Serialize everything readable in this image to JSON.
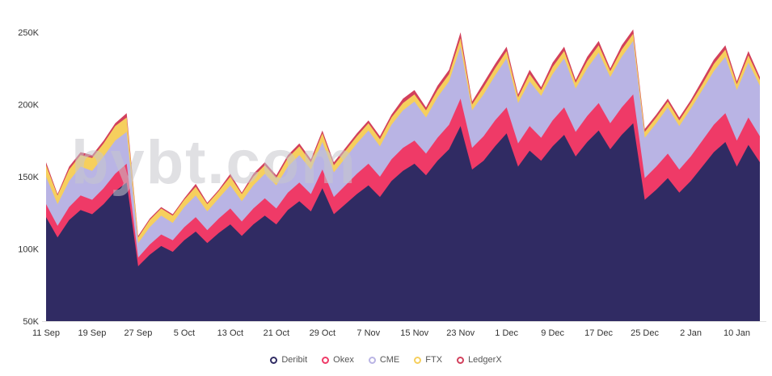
{
  "watermark": "bybt.com",
  "chart_data": {
    "type": "area",
    "stacked": true,
    "title": "",
    "xlabel": "",
    "ylabel": "",
    "unit": "K",
    "grid": false,
    "legend_position": "bottom",
    "y_ticks": [
      50,
      100,
      150,
      200,
      250
    ],
    "y_tick_labels": [
      "50K",
      "100K",
      "150K",
      "200K",
      "250K"
    ],
    "ylim": [
      50,
      260
    ],
    "x_tick_labels": [
      "11 Sep",
      "19 Sep",
      "27 Sep",
      "5 Oct",
      "13 Oct",
      "21 Oct",
      "29 Oct",
      "7 Nov",
      "15 Nov",
      "23 Nov",
      "1 Dec",
      "9 Dec",
      "17 Dec",
      "25 Dec",
      "2 Jan",
      "10 Jan"
    ],
    "x_tick_indices": [
      0,
      4,
      8,
      12,
      16,
      20,
      24,
      28,
      32,
      36,
      40,
      44,
      48,
      52,
      56,
      60
    ],
    "series": [
      {
        "name": "Deribit",
        "color": "#302b63",
        "values": [
          122,
          108,
          120,
          127,
          124,
          131,
          140,
          146,
          88,
          96,
          102,
          98,
          106,
          112,
          104,
          111,
          117,
          109,
          117,
          123,
          117,
          127,
          133,
          126,
          142,
          124,
          131,
          138,
          144,
          136,
          147,
          154,
          159,
          151,
          161,
          169,
          185,
          155,
          161,
          171,
          180,
          157,
          168,
          161,
          171,
          179,
          164,
          174,
          182,
          169,
          179,
          187,
          134,
          141,
          149,
          139,
          147,
          157,
          167,
          174,
          157,
          172,
          160
        ]
      },
      {
        "name": "Okex",
        "color": "#ef3a67",
        "values": [
          9,
          8,
          9,
          10,
          10,
          11,
          12,
          13,
          6,
          7,
          8,
          8,
          9,
          10,
          9,
          10,
          11,
          10,
          11,
          12,
          11,
          12,
          13,
          12,
          13,
          12,
          13,
          14,
          15,
          14,
          15,
          16,
          16,
          15,
          16,
          17,
          19,
          15,
          17,
          18,
          18,
          16,
          17,
          16,
          18,
          19,
          17,
          18,
          19,
          18,
          19,
          20,
          15,
          16,
          17,
          16,
          17,
          18,
          19,
          20,
          18,
          19,
          18
        ]
      },
      {
        "name": "CME",
        "color": "#b9b4e4",
        "values": [
          19,
          15,
          18,
          20,
          20,
          22,
          23,
          22,
          10,
          12,
          13,
          12,
          14,
          15,
          13,
          14,
          16,
          14,
          16,
          17,
          16,
          18,
          19,
          17,
          19,
          17,
          19,
          21,
          23,
          21,
          24,
          26,
          27,
          25,
          28,
          30,
          36,
          26,
          29,
          31,
          34,
          28,
          31,
          29,
          32,
          34,
          30,
          33,
          35,
          32,
          35,
          37,
          28,
          30,
          32,
          30,
          33,
          35,
          37,
          39,
          35,
          38,
          35
        ]
      },
      {
        "name": "FTX",
        "color": "#f6cf5d",
        "values": [
          8,
          6,
          8,
          8,
          9,
          9,
          10,
          10,
          4,
          5,
          5,
          5,
          5,
          6,
          5,
          5,
          6,
          5,
          6,
          6,
          5,
          6,
          6,
          5,
          6,
          5,
          5,
          5,
          5,
          5,
          5,
          5,
          5,
          5,
          5,
          5,
          6,
          4,
          5,
          5,
          5,
          4,
          5,
          4,
          5,
          5,
          4,
          5,
          5,
          4,
          5,
          5,
          4,
          4,
          4,
          4,
          4,
          4,
          5,
          5,
          4,
          5,
          4
        ]
      },
      {
        "name": "LedgerX",
        "color": "#d2405c",
        "values": [
          2,
          1,
          2,
          2,
          2,
          2,
          2,
          3,
          1,
          1,
          1,
          1,
          1,
          2,
          1,
          1,
          2,
          1,
          2,
          2,
          2,
          2,
          2,
          2,
          2,
          2,
          2,
          2,
          2,
          2,
          2,
          3,
          3,
          2,
          3,
          3,
          4,
          2,
          3,
          3,
          3,
          2,
          3,
          2,
          3,
          3,
          2,
          3,
          3,
          2,
          3,
          3,
          2,
          2,
          2,
          2,
          2,
          3,
          3,
          3,
          2,
          3,
          2
        ]
      }
    ]
  }
}
